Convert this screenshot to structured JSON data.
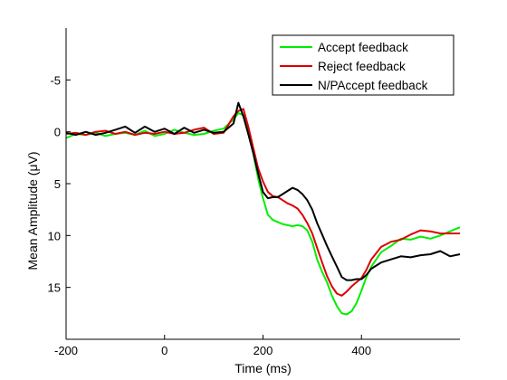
{
  "chart_data": {
    "type": "line",
    "title": "",
    "xlabel": "Time (ms)",
    "ylabel": "Mean Amplitude (μV)",
    "xlim": [
      -200,
      600
    ],
    "ylim": [
      -10,
      20
    ],
    "y_reversed": true,
    "grid": false,
    "legend_position": "top-right",
    "x_ticks": [
      -200,
      0,
      200,
      400
    ],
    "x_tick_labels": [
      "-200",
      "0",
      "200",
      "400"
    ],
    "y_ticks": [
      -5,
      0,
      5,
      10,
      15
    ],
    "y_tick_labels": [
      "-5",
      "0",
      "5",
      "10",
      "15"
    ],
    "series": [
      {
        "name": "Accept feedback",
        "color": "#00ee00",
        "x": [
          -200,
          -180,
          -160,
          -140,
          -120,
          -100,
          -80,
          -60,
          -40,
          -20,
          0,
          20,
          40,
          60,
          80,
          100,
          120,
          140,
          150,
          160,
          170,
          180,
          190,
          200,
          210,
          220,
          230,
          240,
          250,
          260,
          270,
          280,
          290,
          300,
          310,
          320,
          330,
          340,
          350,
          360,
          370,
          380,
          390,
          400,
          410,
          420,
          430,
          440,
          460,
          480,
          500,
          520,
          540,
          560,
          580,
          600
        ],
        "y": [
          0.6,
          0.2,
          0.3,
          0.1,
          0.4,
          0.2,
          0.1,
          0.3,
          -0.1,
          0.4,
          0.2,
          -0.2,
          0.1,
          0.3,
          0.2,
          -0.1,
          -0.3,
          -1.2,
          -1.8,
          -1.6,
          -0.2,
          2.0,
          4.5,
          6.4,
          8.0,
          8.5,
          8.7,
          8.9,
          9.0,
          9.1,
          9.0,
          9.1,
          9.5,
          10.6,
          12.3,
          13.5,
          14.5,
          15.8,
          16.8,
          17.5,
          17.6,
          17.3,
          16.5,
          15.3,
          14.0,
          13.0,
          12.3,
          11.6,
          11.0,
          10.3,
          10.4,
          10.1,
          10.3,
          10.0,
          9.6,
          9.2
        ]
      },
      {
        "name": "Reject feedback",
        "color": "#dd0000",
        "x": [
          -200,
          -180,
          -160,
          -140,
          -120,
          -100,
          -80,
          -60,
          -40,
          -20,
          0,
          20,
          40,
          60,
          80,
          100,
          120,
          140,
          150,
          160,
          170,
          180,
          190,
          200,
          210,
          220,
          230,
          240,
          250,
          260,
          270,
          280,
          290,
          300,
          310,
          320,
          330,
          340,
          350,
          360,
          370,
          380,
          390,
          400,
          410,
          420,
          440,
          460,
          480,
          500,
          520,
          540,
          560,
          580,
          600
        ],
        "y": [
          0.2,
          0.1,
          0.3,
          0.0,
          -0.1,
          0.2,
          0.0,
          0.3,
          0.1,
          0.2,
          0.0,
          0.2,
          0.1,
          -0.2,
          -0.4,
          0.2,
          0.1,
          -1.5,
          -2.0,
          -2.2,
          -0.5,
          1.5,
          3.5,
          4.8,
          5.8,
          6.2,
          6.3,
          6.6,
          6.9,
          7.1,
          7.4,
          8.0,
          8.8,
          9.8,
          11.2,
          12.6,
          13.9,
          14.9,
          15.6,
          15.8,
          15.4,
          14.9,
          14.5,
          14.1,
          13.3,
          12.3,
          11.1,
          10.6,
          10.4,
          9.9,
          9.5,
          9.6,
          9.8,
          9.8,
          9.8
        ]
      },
      {
        "name": "N/PAccept feedback",
        "color": "#000000",
        "x": [
          -200,
          -180,
          -160,
          -140,
          -120,
          -100,
          -80,
          -60,
          -40,
          -20,
          0,
          20,
          40,
          60,
          80,
          100,
          120,
          140,
          150,
          160,
          170,
          180,
          190,
          200,
          210,
          220,
          230,
          240,
          250,
          260,
          270,
          280,
          290,
          300,
          310,
          320,
          330,
          340,
          350,
          360,
          370,
          380,
          390,
          400,
          410,
          420,
          440,
          460,
          480,
          500,
          520,
          540,
          560,
          580,
          600
        ],
        "y": [
          0.1,
          0.3,
          0.0,
          0.3,
          0.1,
          -0.2,
          -0.5,
          0.1,
          -0.5,
          0.0,
          -0.3,
          0.2,
          -0.4,
          0.1,
          -0.2,
          0.1,
          0.0,
          -0.8,
          -2.8,
          -1.5,
          0.2,
          2.0,
          4.0,
          5.8,
          6.4,
          6.3,
          6.3,
          6.0,
          5.7,
          5.4,
          5.6,
          6.0,
          6.6,
          7.5,
          8.8,
          9.9,
          11.0,
          12.0,
          13.0,
          14.0,
          14.3,
          14.3,
          14.2,
          14.2,
          13.8,
          13.2,
          12.6,
          12.3,
          12.0,
          12.1,
          11.9,
          11.8,
          11.5,
          12.0,
          11.8
        ]
      }
    ]
  }
}
